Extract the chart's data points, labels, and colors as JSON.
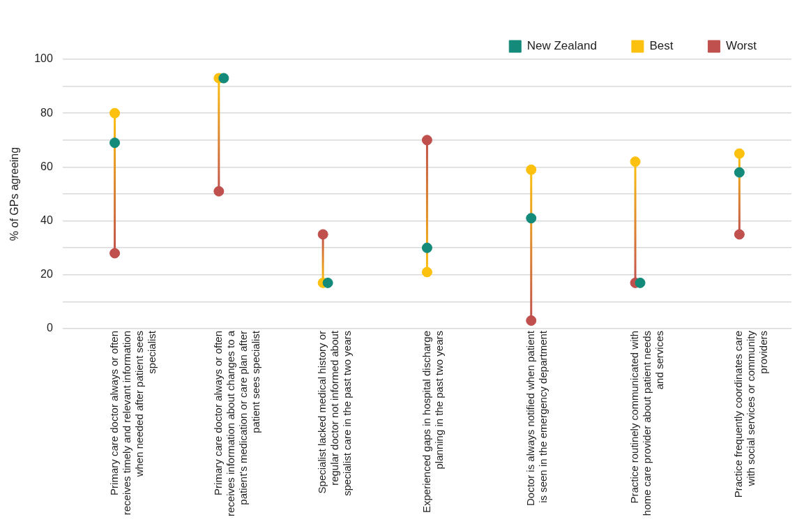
{
  "chart_data": {
    "type": "scatter",
    "ylabel": "% of GPs agreeing",
    "categories": [
      "Primary care doctor always or often receives timely and relevant information when needed after patient sees specialist",
      "Primary care doctor always or often receives information about changes to a patient's medication or care plan after patient sees specialist",
      "Specialist lacked medical history or regular doctor not informed about specialist care in the past two years",
      "Experienced gaps in hospital discharge planning in the past two years",
      "Doctor is always notified when patient is seen in the emergency department",
      "Practice routinely communicated with home care provider about patient needs and services",
      "Practice frequently coordinates care with social services or community providers"
    ],
    "series": [
      {
        "name": "New Zealand",
        "color": "#138a7a",
        "values": [
          69,
          93,
          17,
          30,
          41,
          17,
          58
        ]
      },
      {
        "name": "Best",
        "color": "#fcc10f",
        "values": [
          80,
          93,
          17,
          21,
          59,
          62,
          65
        ]
      },
      {
        "name": "Worst",
        "color": "#c0504d",
        "values": [
          28,
          51,
          35,
          70,
          3,
          17,
          35
        ]
      }
    ],
    "ylim": [
      0,
      100
    ],
    "yticks": [
      0,
      {
        "value": 10,
        "label": null
      },
      20,
      {
        "value": 30,
        "label": null
      },
      40,
      {
        "value": 50,
        "label": null
      },
      60,
      {
        "value": 70,
        "label": null
      },
      80,
      {
        "value": 90,
        "label": null
      },
      100
    ],
    "grid": "y",
    "legend": "top right",
    "marker": "circle"
  }
}
